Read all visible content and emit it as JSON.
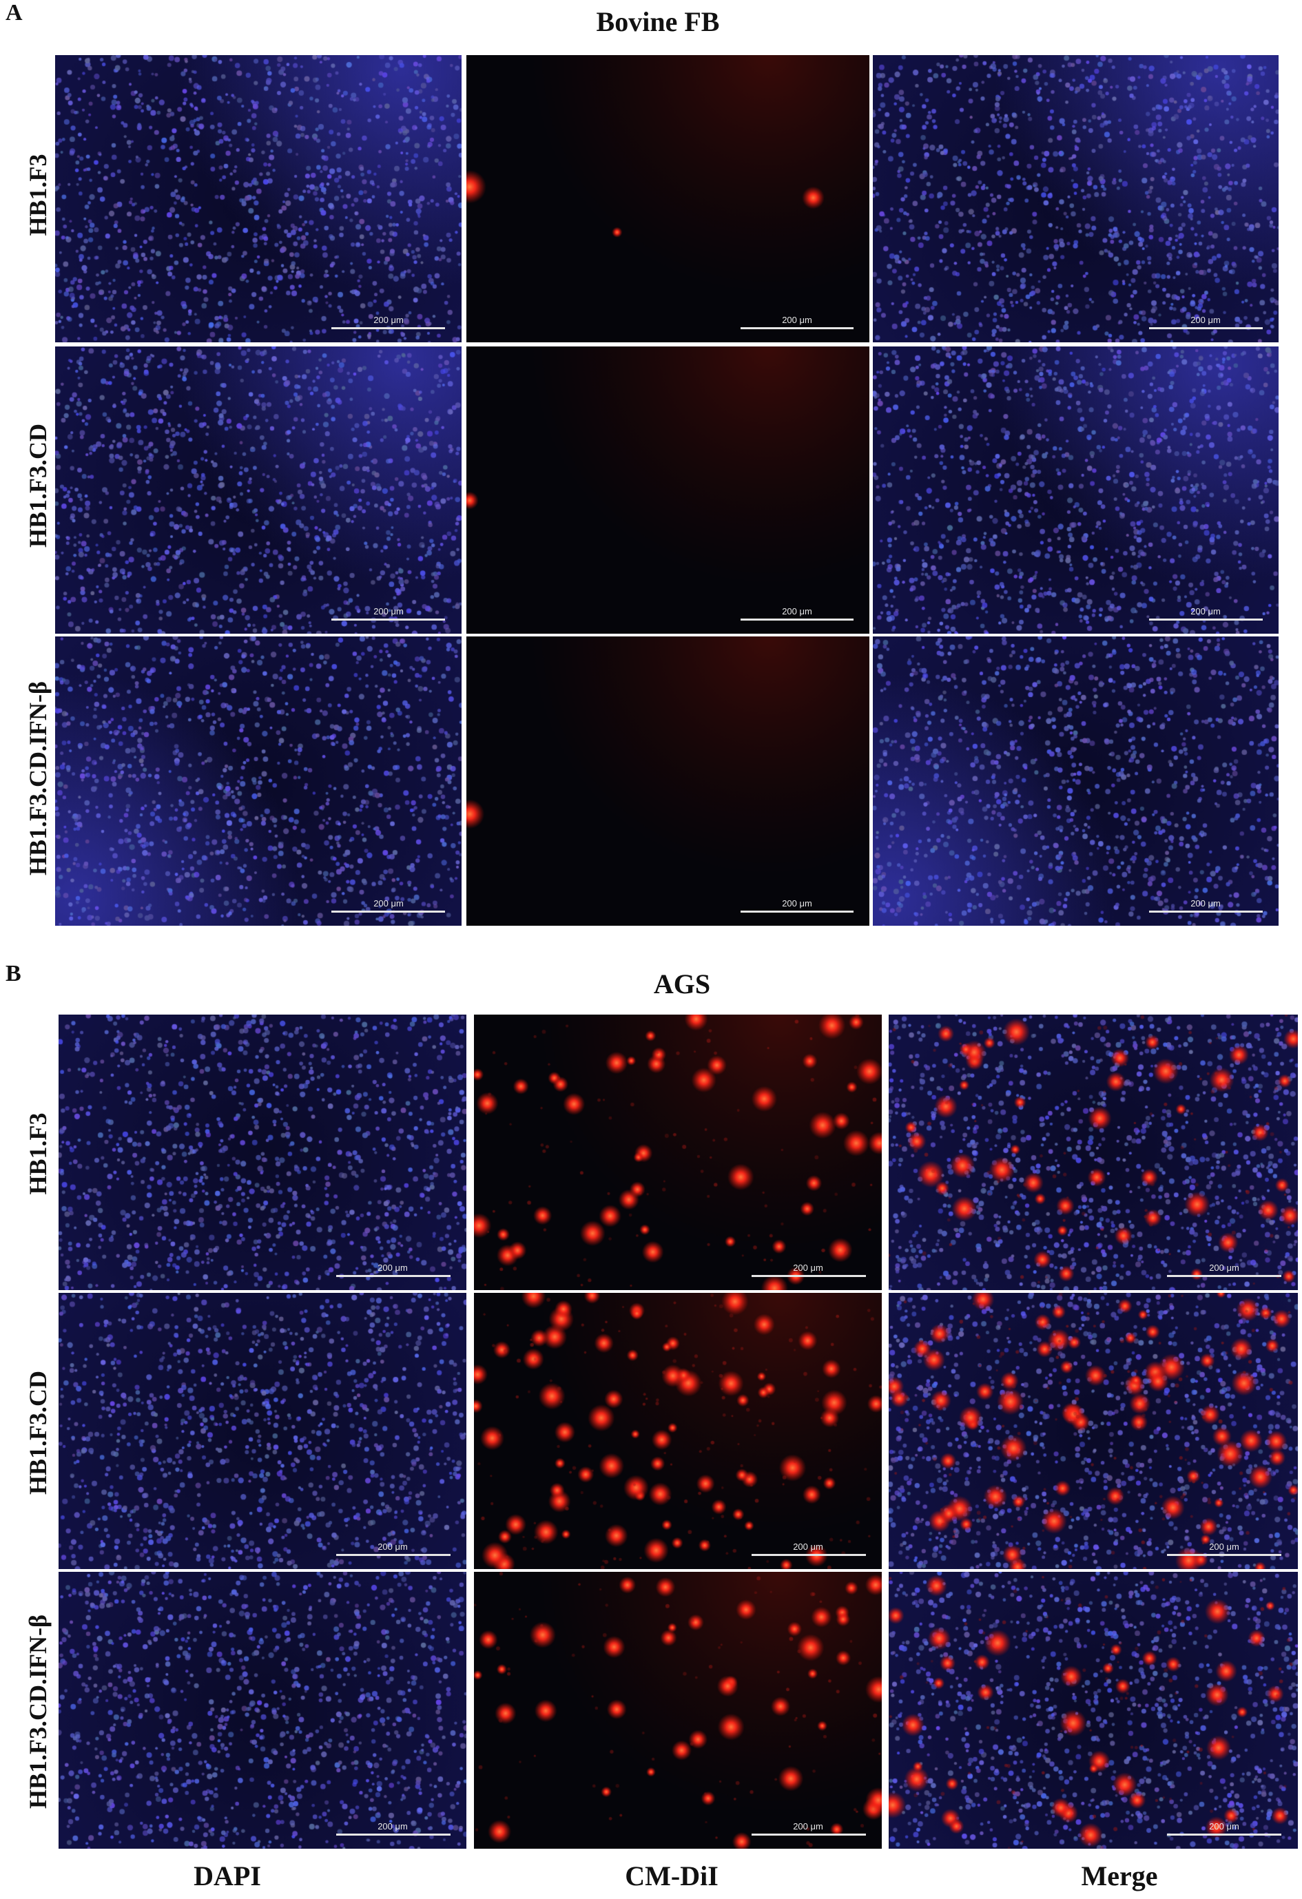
{
  "panels": [
    {
      "letter": "A",
      "title": "Bovine FB",
      "rows": [
        "HB1.F3",
        "HB1.F3.CD",
        "HB1.F3.CD.IFN-β"
      ],
      "images": [
        [
          {
            "channel": "dapi",
            "glow": "tr"
          },
          {
            "channel": "dil",
            "red_spots": 3
          },
          {
            "channel": "merge",
            "glow": "tr"
          }
        ],
        [
          {
            "channel": "dapi",
            "glow": "tr"
          },
          {
            "channel": "dil",
            "red_spots": 1
          },
          {
            "channel": "merge",
            "glow": "tr"
          }
        ],
        [
          {
            "channel": "dapi",
            "glow": "bl"
          },
          {
            "channel": "dil",
            "red_spots": 1
          },
          {
            "channel": "merge",
            "glow": "bl"
          }
        ]
      ]
    },
    {
      "letter": "B",
      "title": "AGS",
      "rows": [
        "HB1.F3",
        "HB1.F3.CD",
        "HB1.F3.CD.IFN-β"
      ],
      "images": [
        [
          {
            "channel": "dapi"
          },
          {
            "channel": "dil",
            "red_spots": 45
          },
          {
            "channel": "merge",
            "red_spots": 45
          }
        ],
        [
          {
            "channel": "dapi"
          },
          {
            "channel": "dil",
            "red_spots": 70
          },
          {
            "channel": "merge",
            "red_spots": 70
          }
        ],
        [
          {
            "channel": "dapi"
          },
          {
            "channel": "dil",
            "red_spots": 40
          },
          {
            "channel": "merge",
            "red_spots": 40
          }
        ]
      ]
    }
  ],
  "columns": [
    "DAPI",
    "CM-DiI",
    "Merge"
  ],
  "scale_bar_label": "200 μm",
  "colors": {
    "dapi": "#3a3ad8",
    "dil": "#ff2a1a",
    "background": "#05050a"
  }
}
